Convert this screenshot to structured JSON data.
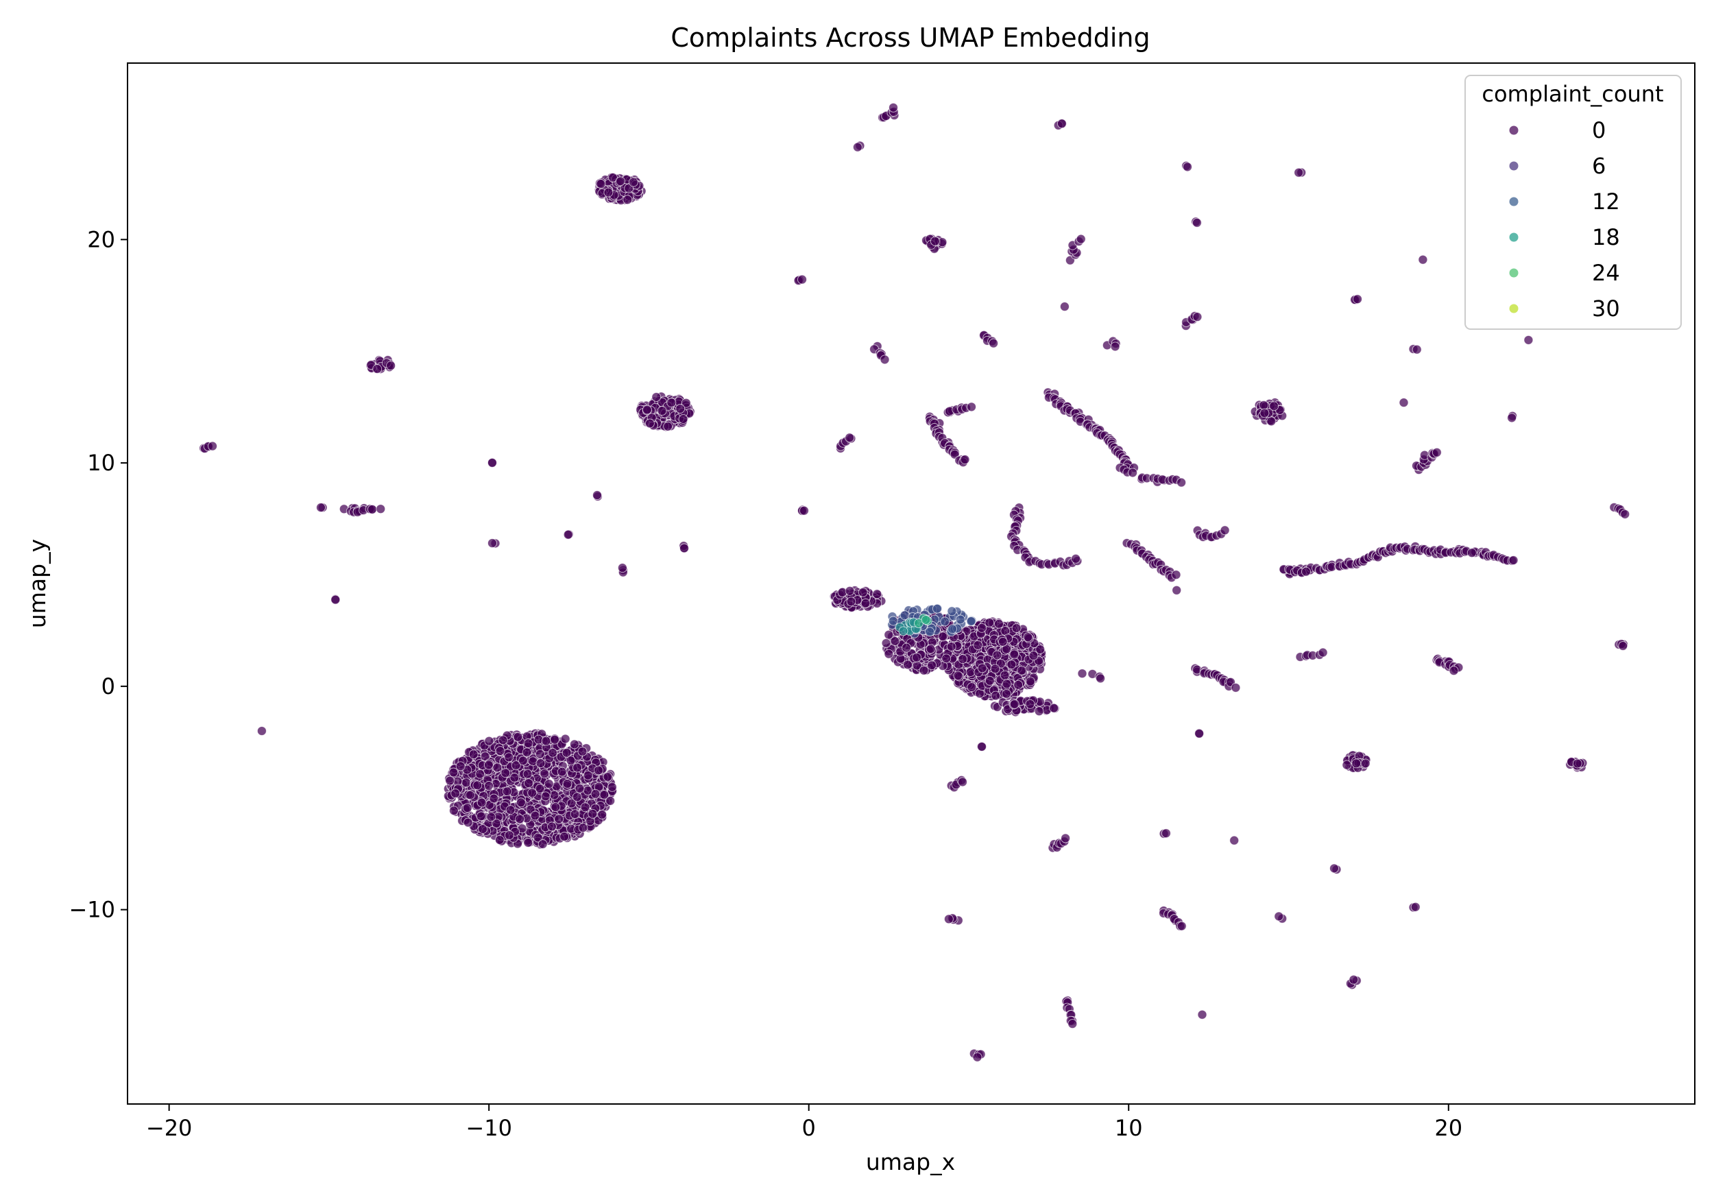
{
  "chart_data": {
    "type": "scatter",
    "title": "Complaints Across UMAP Embedding",
    "xlabel": "umap_x",
    "ylabel": "umap_y",
    "xlim": [
      -21.3,
      27.7
    ],
    "ylim": [
      -18.7,
      27.9
    ],
    "xticks": [
      -20,
      -10,
      0,
      10,
      20
    ],
    "xtick_labels": [
      "−20",
      "−10",
      "0",
      "10",
      "20"
    ],
    "yticks": [
      -10,
      0,
      10,
      20
    ],
    "ytick_labels": [
      "−10",
      "0",
      "10",
      "20"
    ],
    "grid": false,
    "colormap": "viridis",
    "color_range": [
      0,
      34
    ],
    "legend": {
      "title": "complaint_count",
      "placement": "upper right",
      "entries": [
        {
          "label": "0",
          "value": 0,
          "color": "#440154"
        },
        {
          "label": "6",
          "value": 6,
          "color": "#46327e"
        },
        {
          "label": "12",
          "value": 12,
          "color": "#365c8d"
        },
        {
          "label": "18",
          "value": 18,
          "color": "#1f9e89"
        },
        {
          "label": "24",
          "value": 24,
          "color": "#4ac16d"
        },
        {
          "label": "30",
          "value": 30,
          "color": "#bddf26"
        }
      ]
    },
    "clusters": [
      {
        "shape": "blob",
        "cx": -8.7,
        "cy": -4.6,
        "rx": 2.6,
        "ry": 2.5,
        "n": 1100,
        "c": 0
      },
      {
        "shape": "blob",
        "cx": -5.9,
        "cy": 22.3,
        "rx": 0.7,
        "ry": 0.55,
        "n": 140,
        "c": 0
      },
      {
        "shape": "blob",
        "cx": -4.5,
        "cy": 12.3,
        "rx": 0.8,
        "ry": 0.7,
        "n": 150,
        "c": 0
      },
      {
        "shape": "blob",
        "cx": -13.4,
        "cy": 14.4,
        "rx": 0.35,
        "ry": 0.3,
        "n": 25,
        "c": 0
      },
      {
        "shape": "blob",
        "cx": 14.4,
        "cy": 12.3,
        "rx": 0.45,
        "ry": 0.45,
        "n": 50,
        "c": 0
      },
      {
        "shape": "blob",
        "cx": 17.1,
        "cy": -3.4,
        "rx": 0.35,
        "ry": 0.35,
        "n": 40,
        "c": 0
      },
      {
        "shape": "blob",
        "cx": 24.0,
        "cy": -3.5,
        "rx": 0.3,
        "ry": 0.2,
        "n": 15,
        "c": 0
      },
      {
        "shape": "blob",
        "cx": 3.9,
        "cy": 19.8,
        "rx": 0.3,
        "ry": 0.25,
        "n": 20,
        "c": 0
      },
      {
        "shape": "blob",
        "cx": 5.8,
        "cy": 1.2,
        "rx": 1.5,
        "ry": 1.7,
        "n": 700,
        "c": 0
      },
      {
        "shape": "blob",
        "cx": 3.6,
        "cy": 2.0,
        "rx": 1.2,
        "ry": 1.4,
        "n": 220,
        "c": 0
      },
      {
        "shape": "blob",
        "cx": 1.5,
        "cy": 3.9,
        "rx": 0.8,
        "ry": 0.4,
        "n": 120,
        "c": 0
      },
      {
        "shape": "blob",
        "cx": 6.8,
        "cy": -0.9,
        "rx": 1.0,
        "ry": 0.3,
        "n": 60,
        "c": 0
      },
      {
        "shape": "blob",
        "cx": 3.8,
        "cy": 2.9,
        "rx": 1.3,
        "ry": 0.6,
        "n": 60,
        "c": 8
      },
      {
        "shape": "blob",
        "cx": 3.1,
        "cy": 2.7,
        "rx": 0.4,
        "ry": 0.25,
        "n": 12,
        "c": 16
      },
      {
        "shape": "blob",
        "cx": 3.6,
        "cy": 2.9,
        "rx": 0.2,
        "ry": 0.15,
        "n": 4,
        "c": 21
      },
      {
        "shape": "path",
        "pts": [
          [
            7.5,
            13.1
          ],
          [
            8.5,
            12.0
          ],
          [
            9.4,
            11.0
          ],
          [
            10.1,
            9.7
          ]
        ],
        "n": 70,
        "c": 0
      },
      {
        "shape": "path",
        "pts": [
          [
            15.0,
            5.1
          ],
          [
            17.0,
            5.5
          ],
          [
            18.3,
            6.2
          ],
          [
            20.0,
            6.0
          ],
          [
            21.0,
            6.0
          ],
          [
            22.0,
            5.6
          ]
        ],
        "n": 110,
        "c": 0
      },
      {
        "shape": "path",
        "pts": [
          [
            10.0,
            6.4
          ],
          [
            11.0,
            5.4
          ],
          [
            11.4,
            4.9
          ]
        ],
        "n": 25,
        "c": 0
      },
      {
        "shape": "path",
        "pts": [
          [
            3.8,
            12.1
          ],
          [
            4.2,
            11.0
          ],
          [
            4.5,
            10.5
          ],
          [
            4.9,
            10.0
          ]
        ],
        "n": 30,
        "c": 0
      },
      {
        "shape": "path",
        "pts": [
          [
            4.3,
            12.3
          ],
          [
            5.0,
            12.5
          ]
        ],
        "n": 10,
        "c": 0
      },
      {
        "shape": "path",
        "pts": [
          [
            6.5,
            8.0
          ],
          [
            6.4,
            6.5
          ],
          [
            7.0,
            5.5
          ],
          [
            8.0,
            5.5
          ],
          [
            8.4,
            5.7
          ]
        ],
        "n": 40,
        "c": 0
      },
      {
        "shape": "path",
        "pts": [
          [
            12.1,
            0.8
          ],
          [
            12.8,
            0.4
          ],
          [
            13.3,
            0.0
          ]
        ],
        "n": 20,
        "c": 0
      },
      {
        "shape": "path",
        "pts": [
          [
            -14.5,
            7.9
          ],
          [
            -13.5,
            7.9
          ]
        ],
        "n": 15,
        "c": 0
      },
      {
        "shape": "path",
        "pts": [
          [
            10.4,
            9.3
          ],
          [
            11.6,
            9.2
          ]
        ],
        "n": 12,
        "c": 0
      },
      {
        "shape": "path",
        "pts": [
          [
            12.1,
            6.9
          ],
          [
            12.5,
            6.7
          ],
          [
            13.0,
            6.9
          ]
        ],
        "n": 10,
        "c": 0
      },
      {
        "shape": "path",
        "pts": [
          [
            19.6,
            1.2
          ],
          [
            20.3,
            0.8
          ]
        ],
        "n": 15,
        "c": 0
      },
      {
        "shape": "path",
        "pts": [
          [
            19.0,
            9.7
          ],
          [
            19.6,
            10.5
          ]
        ],
        "n": 15,
        "c": 0
      },
      {
        "shape": "path",
        "pts": [
          [
            14.8,
            5.2
          ],
          [
            15.5,
            5.1
          ]
        ],
        "n": 8,
        "c": 0
      },
      {
        "shape": "path",
        "pts": [
          [
            11.1,
            -10.0
          ],
          [
            11.7,
            -10.7
          ]
        ],
        "n": 12,
        "c": 0
      },
      {
        "shape": "path",
        "pts": [
          [
            8.0,
            -14.0
          ],
          [
            8.3,
            -15.1
          ]
        ],
        "n": 10,
        "c": 0
      },
      {
        "shape": "path",
        "pts": [
          [
            7.6,
            -7.2
          ],
          [
            8.1,
            -6.9
          ]
        ],
        "n": 8,
        "c": 0
      },
      {
        "shape": "path",
        "pts": [
          [
            2.3,
            25.4
          ],
          [
            2.7,
            25.8
          ]
        ],
        "n": 8,
        "c": 0
      },
      {
        "shape": "path",
        "pts": [
          [
            8.2,
            19.2
          ],
          [
            8.4,
            19.9
          ]
        ],
        "n": 8,
        "c": 0
      },
      {
        "shape": "path",
        "pts": [
          [
            2.1,
            15.2
          ],
          [
            2.3,
            14.6
          ]
        ],
        "n": 6,
        "c": 0
      },
      {
        "shape": "path",
        "pts": [
          [
            11.8,
            16.2
          ],
          [
            12.1,
            16.6
          ]
        ],
        "n": 6,
        "c": 0
      },
      {
        "shape": "path",
        "pts": [
          [
            1.0,
            10.6
          ],
          [
            1.3,
            11.2
          ]
        ],
        "n": 6,
        "c": 0
      },
      {
        "shape": "path",
        "pts": [
          [
            4.5,
            -4.5
          ],
          [
            4.9,
            -4.2
          ]
        ],
        "n": 6,
        "c": 0
      },
      {
        "shape": "path",
        "pts": [
          [
            5.4,
            15.7
          ],
          [
            5.8,
            15.4
          ]
        ],
        "n": 6,
        "c": 0
      },
      {
        "shape": "path",
        "pts": [
          [
            25.2,
            8.0
          ],
          [
            25.5,
            7.8
          ]
        ],
        "n": 5,
        "c": 0
      },
      {
        "shape": "path",
        "pts": [
          [
            8.7,
            0.5
          ],
          [
            9.2,
            0.4
          ]
        ],
        "n": 4,
        "c": 0
      },
      {
        "shape": "path",
        "pts": [
          [
            9.4,
            15.4
          ],
          [
            9.6,
            15.3
          ]
        ],
        "n": 4,
        "c": 0
      },
      {
        "shape": "path",
        "pts": [
          [
            15.4,
            1.4
          ],
          [
            16.1,
            1.5
          ]
        ],
        "n": 6,
        "c": 0
      },
      {
        "shape": "path",
        "pts": [
          [
            -18.9,
            10.7
          ],
          [
            -18.7,
            10.6
          ]
        ],
        "n": 5,
        "c": 0
      },
      {
        "shape": "path",
        "pts": [
          [
            25.3,
            1.9
          ],
          [
            25.5,
            1.8
          ]
        ],
        "n": 4,
        "c": 0
      },
      {
        "shape": "path",
        "pts": [
          [
            4.7,
            -10.5
          ],
          [
            4.4,
            -10.4
          ]
        ],
        "n": 4,
        "c": 0
      },
      {
        "shape": "path",
        "pts": [
          [
            16.9,
            -13.3
          ],
          [
            17.1,
            -13.2
          ]
        ],
        "n": 4,
        "c": 0
      },
      {
        "shape": "path",
        "pts": [
          [
            5.2,
            -16.4
          ],
          [
            5.4,
            -16.6
          ]
        ],
        "n": 4,
        "c": 0
      },
      {
        "shape": "path",
        "pts": [
          [
            9.7,
            9.8
          ],
          [
            10.1,
            9.6
          ]
        ],
        "n": 4,
        "c": 0
      },
      {
        "shape": "point",
        "x": -17.1,
        "y": -2.0,
        "n": 1,
        "c": 0
      },
      {
        "shape": "point",
        "x": -15.2,
        "y": 8.0,
        "n": 2,
        "c": 0
      },
      {
        "shape": "point",
        "x": -14.8,
        "y": 3.9,
        "n": 2,
        "c": 0
      },
      {
        "shape": "point",
        "x": -9.9,
        "y": 10.0,
        "n": 2,
        "c": 0
      },
      {
        "shape": "point",
        "x": -9.8,
        "y": 6.4,
        "n": 2,
        "c": 0
      },
      {
        "shape": "point",
        "x": -7.5,
        "y": 6.8,
        "n": 2,
        "c": 0
      },
      {
        "shape": "point",
        "x": -6.6,
        "y": 8.5,
        "n": 2,
        "c": 0
      },
      {
        "shape": "point",
        "x": -5.8,
        "y": 5.2,
        "n": 3,
        "c": 0
      },
      {
        "shape": "point",
        "x": -3.9,
        "y": 6.2,
        "n": 3,
        "c": 0
      },
      {
        "shape": "point",
        "x": -0.3,
        "y": 18.2,
        "n": 3,
        "c": 0
      },
      {
        "shape": "point",
        "x": -0.2,
        "y": 7.9,
        "n": 3,
        "c": 0
      },
      {
        "shape": "point",
        "x": 1.6,
        "y": 24.2,
        "n": 2,
        "c": 0
      },
      {
        "shape": "point",
        "x": 7.9,
        "y": 25.2,
        "n": 3,
        "c": 0
      },
      {
        "shape": "point",
        "x": 8.0,
        "y": 17.0,
        "n": 1,
        "c": 0
      },
      {
        "shape": "point",
        "x": 11.8,
        "y": 23.3,
        "n": 2,
        "c": 0
      },
      {
        "shape": "point",
        "x": 12.1,
        "y": 20.8,
        "n": 2,
        "c": 0
      },
      {
        "shape": "point",
        "x": 15.4,
        "y": 23.0,
        "n": 2,
        "c": 0
      },
      {
        "shape": "point",
        "x": 17.1,
        "y": 17.3,
        "n": 3,
        "c": 0
      },
      {
        "shape": "point",
        "x": 19.2,
        "y": 19.1,
        "n": 1,
        "c": 0
      },
      {
        "shape": "point",
        "x": 18.9,
        "y": 15.1,
        "n": 2,
        "c": 0
      },
      {
        "shape": "point",
        "x": 22.5,
        "y": 15.5,
        "n": 1,
        "c": 0
      },
      {
        "shape": "point",
        "x": 18.6,
        "y": 12.7,
        "n": 1,
        "c": 0
      },
      {
        "shape": "point",
        "x": 22.0,
        "y": 12.1,
        "n": 2,
        "c": 0
      },
      {
        "shape": "point",
        "x": 11.5,
        "y": 4.3,
        "n": 1,
        "c": 0
      },
      {
        "shape": "point",
        "x": 12.2,
        "y": -2.1,
        "n": 2,
        "c": 0
      },
      {
        "shape": "point",
        "x": 5.4,
        "y": -2.7,
        "n": 2,
        "c": 0
      },
      {
        "shape": "point",
        "x": 11.1,
        "y": -6.6,
        "n": 2,
        "c": 0
      },
      {
        "shape": "point",
        "x": 13.3,
        "y": -6.9,
        "n": 1,
        "c": 0
      },
      {
        "shape": "point",
        "x": 16.5,
        "y": -8.2,
        "n": 2,
        "c": 0
      },
      {
        "shape": "point",
        "x": 14.8,
        "y": -10.4,
        "n": 2,
        "c": 0
      },
      {
        "shape": "point",
        "x": 18.9,
        "y": -9.9,
        "n": 2,
        "c": 0
      },
      {
        "shape": "point",
        "x": 12.3,
        "y": -14.7,
        "n": 1,
        "c": 0
      }
    ]
  }
}
